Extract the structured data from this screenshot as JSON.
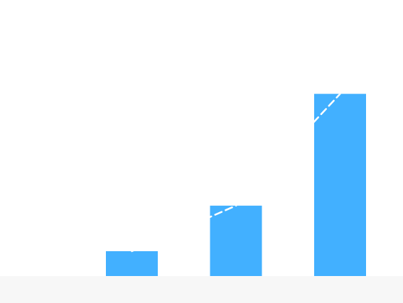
{
  "chart_data": {
    "type": "bar",
    "categories": [
      "",
      "",
      ""
    ],
    "values": [
      1.8,
      5.1,
      13.2
    ],
    "ylim": [
      0,
      20
    ],
    "grid": false,
    "legend": "none",
    "trendline": {
      "style": "dashed",
      "values": [
        1.8,
        5.1,
        13.2
      ]
    },
    "colors": {
      "bar": "#42B0FF",
      "trendline": "#ffffff",
      "plot_background": "#ffffff",
      "bottom_band": "#f7f7f7"
    }
  }
}
